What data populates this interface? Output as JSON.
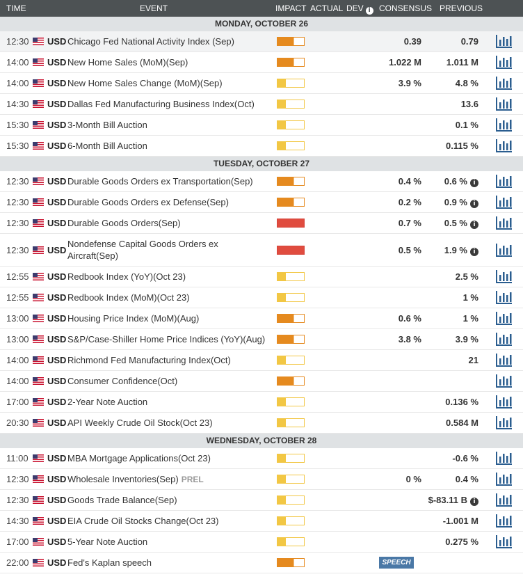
{
  "header": {
    "time": "TIME",
    "event": "EVENT",
    "impact": "IMPACT",
    "actual": "ACTUAL",
    "dev": "DEV",
    "dev_info": "i",
    "consensus": "CONSENSUS",
    "previous": "PREVIOUS"
  },
  "colors": {
    "high": "#e04c3f",
    "medium": "#e58a1f",
    "low": "#f2c744",
    "header_bg": "#4d5254",
    "day_bg": "#dfe2e4",
    "speech_bg": "#4a78a6"
  },
  "icons": {
    "flag": "us-flag-icon",
    "chart": "bar-chart-icon",
    "info": "info-icon"
  },
  "days": [
    {
      "label": "MONDAY, OCTOBER 26",
      "events": [
        {
          "time": "12:30",
          "currency": "USD",
          "event": "Chicago Fed National Activity Index (Sep)",
          "impact": "medium",
          "consensus": "0.39",
          "previous": "0.79",
          "highlight": true
        },
        {
          "time": "14:00",
          "currency": "USD",
          "event": "New Home Sales (MoM)(Sep)",
          "impact": "medium",
          "consensus": "1.022 M",
          "previous": "1.011 M"
        },
        {
          "time": "14:00",
          "currency": "USD",
          "event": "New Home Sales Change (MoM)(Sep)",
          "impact": "low",
          "consensus": "3.9 %",
          "previous": "4.8 %"
        },
        {
          "time": "14:30",
          "currency": "USD",
          "event": "Dallas Fed Manufacturing Business Index(Oct)",
          "impact": "low",
          "consensus": "",
          "previous": "13.6"
        },
        {
          "time": "15:30",
          "currency": "USD",
          "event": "3-Month Bill Auction",
          "impact": "low",
          "consensus": "",
          "previous": "0.1 %"
        },
        {
          "time": "15:30",
          "currency": "USD",
          "event": "6-Month Bill Auction",
          "impact": "low",
          "consensus": "",
          "previous": "0.115 %"
        }
      ]
    },
    {
      "label": "TUESDAY, OCTOBER 27",
      "events": [
        {
          "time": "12:30",
          "currency": "USD",
          "event": "Durable Goods Orders ex Transportation(Sep)",
          "impact": "medium",
          "consensus": "0.4 %",
          "previous": "0.6 %",
          "prev_info": true
        },
        {
          "time": "12:30",
          "currency": "USD",
          "event": "Durable Goods Orders ex Defense(Sep)",
          "impact": "medium",
          "consensus": "0.2 %",
          "previous": "0.9 %",
          "prev_info": true
        },
        {
          "time": "12:30",
          "currency": "USD",
          "event": "Durable Goods Orders(Sep)",
          "impact": "high",
          "consensus": "0.7 %",
          "previous": "0.5 %",
          "prev_info": true
        },
        {
          "time": "12:30",
          "currency": "USD",
          "event": "Nondefense Capital Goods Orders ex Aircraft(Sep)",
          "impact": "high",
          "consensus": "0.5 %",
          "previous": "1.9 %",
          "prev_info": true,
          "tall": true
        },
        {
          "time": "12:55",
          "currency": "USD",
          "event": "Redbook Index (YoY)(Oct 23)",
          "impact": "low",
          "consensus": "",
          "previous": "2.5 %"
        },
        {
          "time": "12:55",
          "currency": "USD",
          "event": "Redbook Index (MoM)(Oct 23)",
          "impact": "low",
          "consensus": "",
          "previous": "1 %"
        },
        {
          "time": "13:00",
          "currency": "USD",
          "event": "Housing Price Index (MoM)(Aug)",
          "impact": "medium",
          "consensus": "0.6 %",
          "previous": "1 %"
        },
        {
          "time": "13:00",
          "currency": "USD",
          "event": "S&P/Case-Shiller Home Price Indices (YoY)(Aug)",
          "impact": "medium",
          "consensus": "3.8 %",
          "previous": "3.9 %"
        },
        {
          "time": "14:00",
          "currency": "USD",
          "event": "Richmond Fed Manufacturing Index(Oct)",
          "impact": "low",
          "consensus": "",
          "previous": "21"
        },
        {
          "time": "14:00",
          "currency": "USD",
          "event": "Consumer Confidence(Oct)",
          "impact": "medium",
          "consensus": "",
          "previous": ""
        },
        {
          "time": "17:00",
          "currency": "USD",
          "event": "2-Year Note Auction",
          "impact": "low",
          "consensus": "",
          "previous": "0.136 %"
        },
        {
          "time": "20:30",
          "currency": "USD",
          "event": "API Weekly Crude Oil Stock(Oct 23)",
          "impact": "low",
          "consensus": "",
          "previous": "0.584 M"
        }
      ]
    },
    {
      "label": "WEDNESDAY, OCTOBER 28",
      "events": [
        {
          "time": "11:00",
          "currency": "USD",
          "event": "MBA Mortgage Applications(Oct 23)",
          "impact": "low",
          "consensus": "",
          "previous": "-0.6 %"
        },
        {
          "time": "12:30",
          "currency": "USD",
          "event": "Wholesale Inventories(Sep)",
          "tag": "PREL",
          "impact": "low",
          "consensus": "0 %",
          "previous": "0.4 %"
        },
        {
          "time": "12:30",
          "currency": "USD",
          "event": "Goods Trade Balance(Sep)",
          "impact": "low",
          "consensus": "",
          "previous": "$-83.11 B",
          "prev_info": true
        },
        {
          "time": "14:30",
          "currency": "USD",
          "event": "EIA Crude Oil Stocks Change(Oct 23)",
          "impact": "low",
          "consensus": "",
          "previous": "-1.001 M"
        },
        {
          "time": "17:00",
          "currency": "USD",
          "event": "5-Year Note Auction",
          "impact": "low",
          "consensus": "",
          "previous": "0.275 %"
        },
        {
          "time": "22:00",
          "currency": "USD",
          "event": "Fed's Kaplan speech",
          "impact": "medium",
          "consensus": "",
          "previous": "",
          "speech": "SPEECH",
          "no_chart": true
        }
      ]
    }
  ]
}
